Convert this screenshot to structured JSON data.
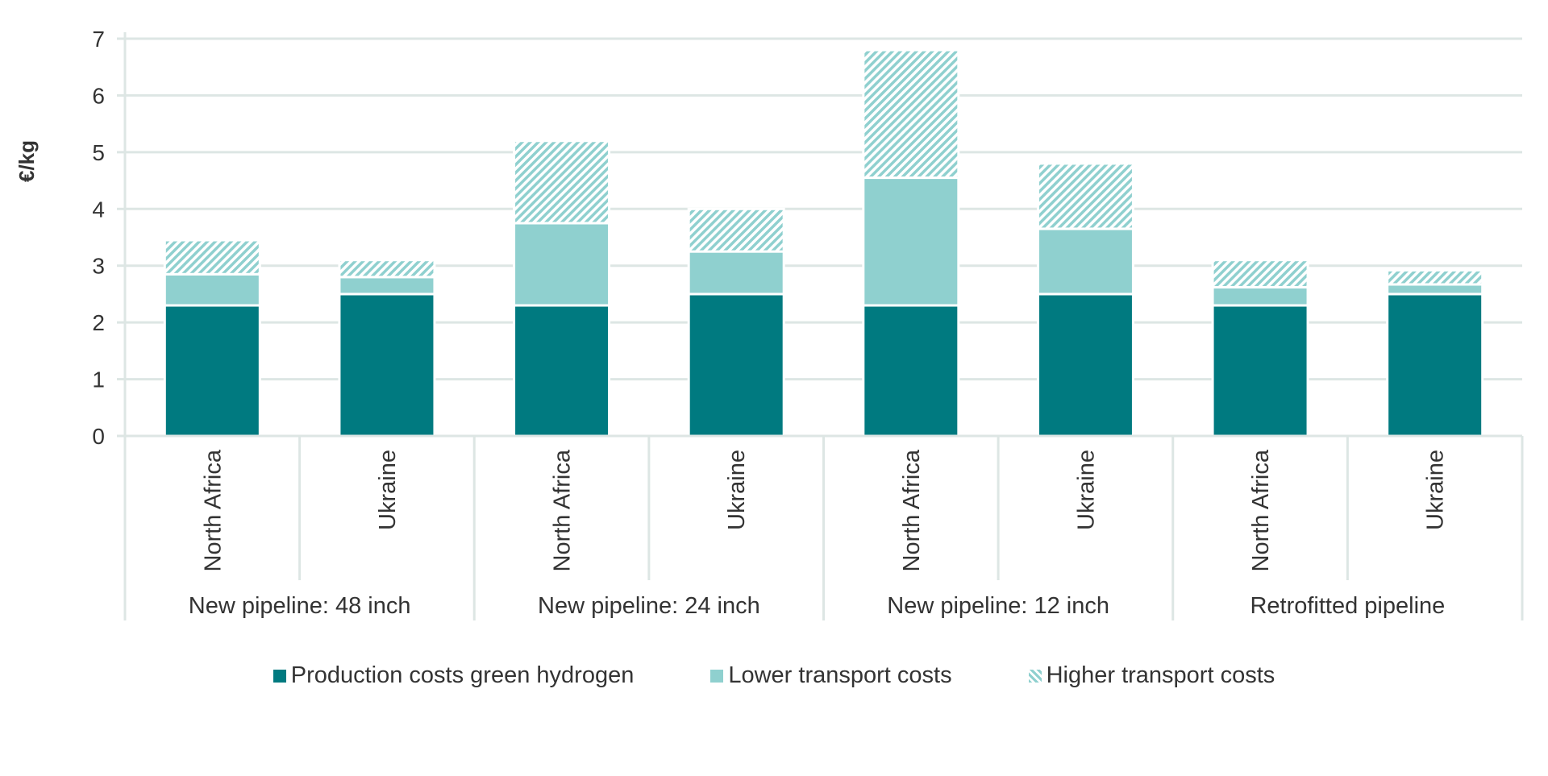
{
  "chart_data": {
    "type": "bar",
    "stacked": true,
    "ylabel": "€/kg",
    "xlabel": "",
    "ylim": [
      0,
      7
    ],
    "yticks": [
      0,
      1,
      2,
      3,
      4,
      5,
      6,
      7
    ],
    "grid": true,
    "legend_position": "bottom",
    "groups": [
      {
        "label": "New pipeline: 48 inch",
        "categories": [
          "North Africa",
          "Ukraine"
        ]
      },
      {
        "label": "New pipeline: 24 inch",
        "categories": [
          "North Africa",
          "Ukraine"
        ]
      },
      {
        "label": "New pipeline: 12 inch",
        "categories": [
          "North Africa",
          "Ukraine"
        ]
      },
      {
        "label": "Retrofitted pipeline",
        "categories": [
          "North Africa",
          "Ukraine"
        ]
      }
    ],
    "series": [
      {
        "name": "Production costs green hydrogen",
        "color": "#007a80",
        "pattern": "solid",
        "values": [
          2.3,
          2.5,
          2.3,
          2.5,
          2.3,
          2.5,
          2.3,
          2.5
        ]
      },
      {
        "name": "Lower transport costs",
        "color": "#8fd0cf",
        "pattern": "solid",
        "values": [
          0.55,
          0.3,
          1.45,
          0.75,
          2.25,
          1.15,
          0.32,
          0.17
        ]
      },
      {
        "name": "Higher transport costs",
        "color": "#8fd0cf",
        "pattern": "hatched",
        "values": [
          0.6,
          0.3,
          1.45,
          0.75,
          2.25,
          1.15,
          0.48,
          0.25
        ]
      }
    ]
  },
  "colors": {
    "production": "#007a80",
    "transport": "#8fd0cf",
    "grid": "#dde6e4",
    "text": "#333333"
  }
}
